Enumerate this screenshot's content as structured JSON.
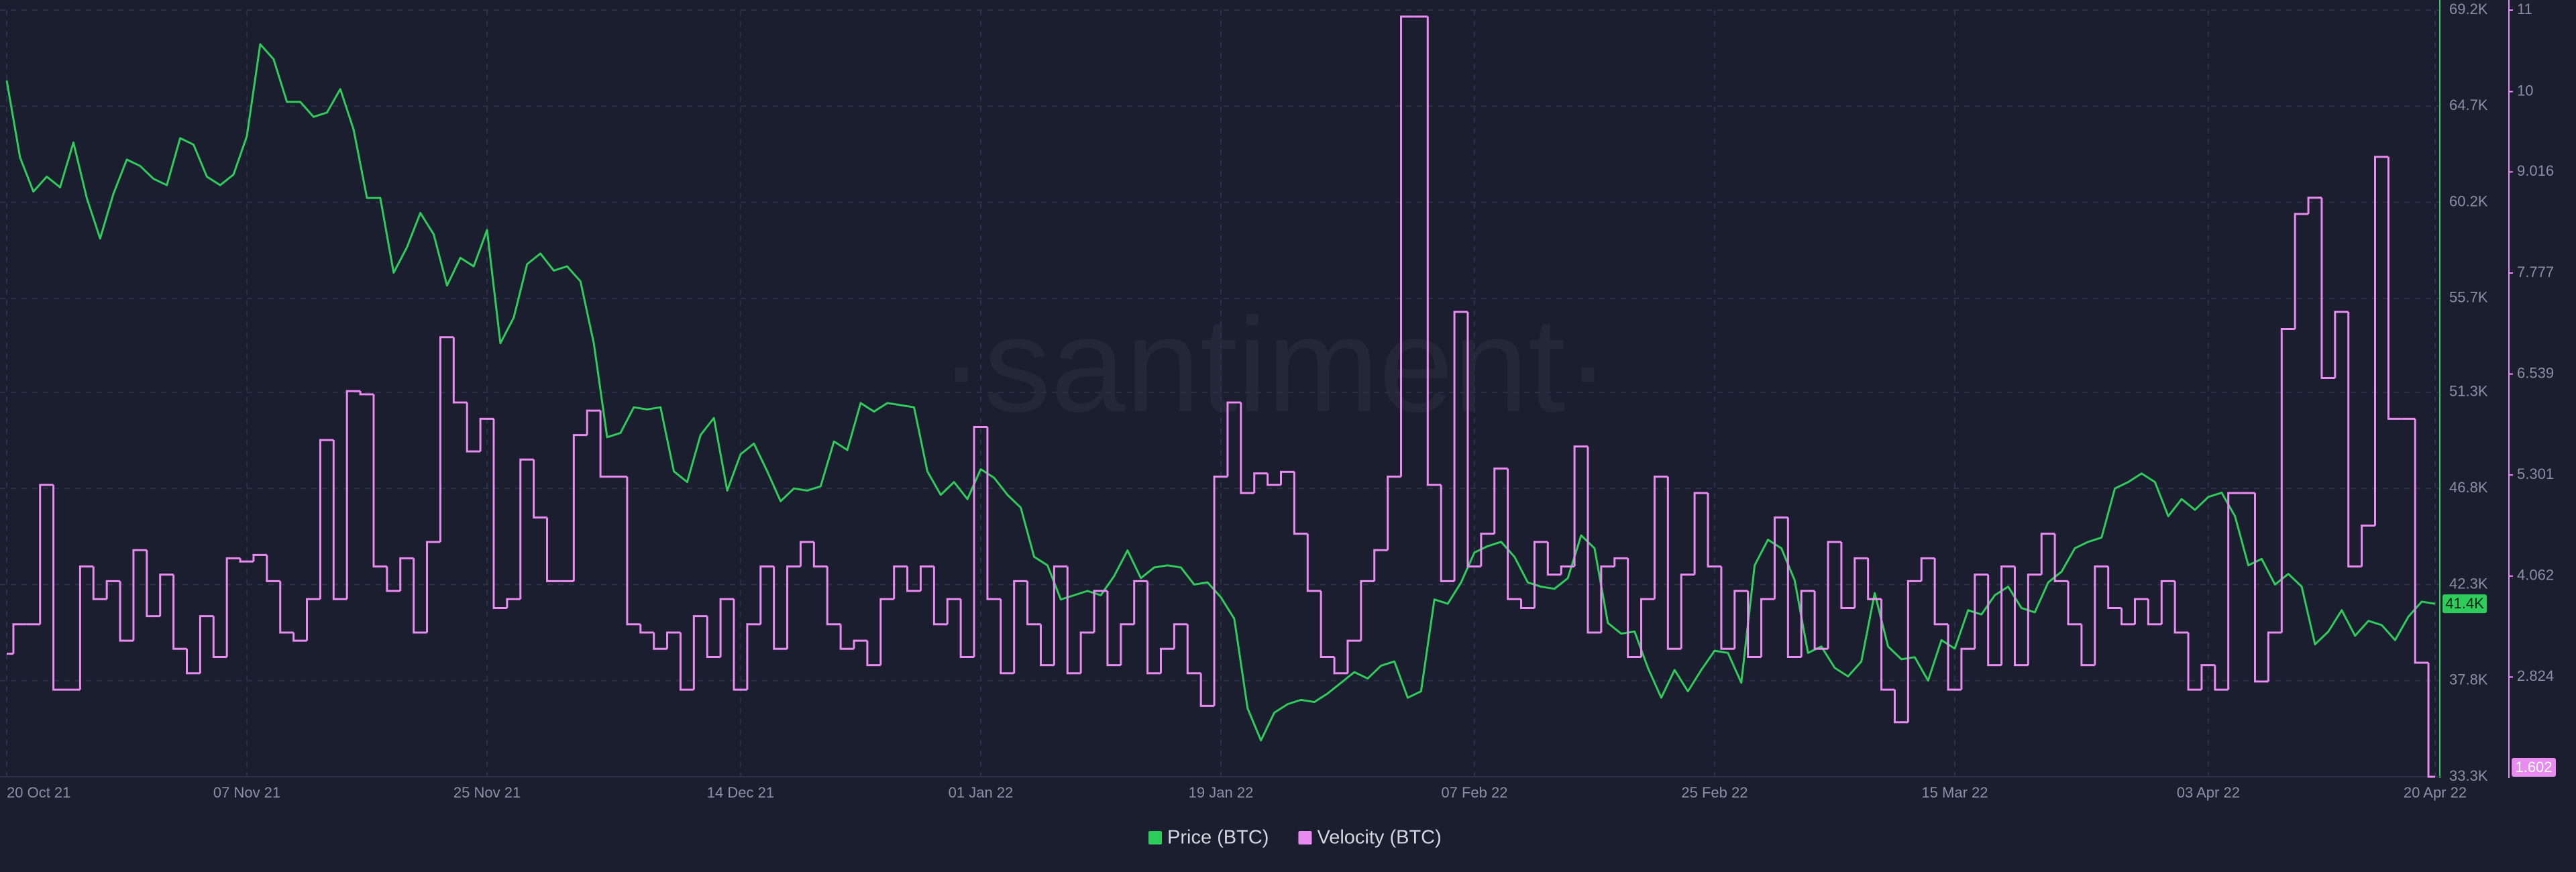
{
  "chart_data": {
    "type": "line",
    "watermark": "·santiment·",
    "categories": [
      "20 Oct 21",
      null,
      null,
      null,
      null,
      null,
      null,
      null,
      null,
      null,
      null,
      null,
      null,
      null,
      null,
      null,
      null,
      null,
      "07 Nov 21",
      null,
      null,
      null,
      null,
      null,
      null,
      null,
      null,
      null,
      null,
      null,
      null,
      null,
      null,
      null,
      null,
      null,
      "25 Nov 21",
      null,
      null,
      null,
      null,
      null,
      null,
      null,
      null,
      null,
      null,
      null,
      null,
      null,
      null,
      null,
      null,
      null,
      null,
      "14 Dec 21",
      null,
      null,
      null,
      null,
      null,
      null,
      null,
      null,
      null,
      null,
      null,
      null,
      null,
      null,
      null,
      null,
      null,
      "01 Jan 22",
      null,
      null,
      null,
      null,
      null,
      null,
      null,
      null,
      null,
      null,
      null,
      null,
      null,
      null,
      null,
      null,
      null,
      "19 Jan 22",
      null,
      null,
      null,
      null,
      null,
      null,
      null,
      null,
      null,
      null,
      null,
      null,
      null,
      null,
      null,
      null,
      null,
      null,
      "07 Feb 22",
      null,
      null,
      null,
      null,
      null,
      null,
      null,
      null,
      null,
      null,
      null,
      null,
      null,
      null,
      null,
      null,
      null,
      "25 Feb 22",
      null,
      null,
      null,
      null,
      null,
      null,
      null,
      null,
      null,
      null,
      null,
      null,
      null,
      null,
      null,
      null,
      null,
      "15 Mar 22",
      null,
      null,
      null,
      null,
      null,
      null,
      null,
      null,
      null,
      null,
      null,
      null,
      null,
      null,
      null,
      null,
      null,
      null,
      "03 Apr 22",
      null,
      null,
      null,
      null,
      null,
      null,
      null,
      null,
      null,
      null,
      null,
      null,
      null,
      null,
      null,
      null,
      "20 Apr 22"
    ],
    "series": [
      {
        "name": "Price (BTC)",
        "color": "#2ecc5a",
        "badge": {
          "value": 41400,
          "label": "41.4K"
        },
        "values": [
          65900,
          62300,
          60700,
          61400,
          60900,
          63000,
          60400,
          58500,
          60600,
          62200,
          61900,
          61300,
          61000,
          63200,
          62900,
          61400,
          61000,
          61500,
          63300,
          67600,
          66900,
          64900,
          64900,
          64200,
          64400,
          65500,
          63600,
          60400,
          60400,
          56900,
          58100,
          59700,
          58700,
          56300,
          57600,
          57200,
          58900,
          53600,
          54800,
          57300,
          57800,
          57000,
          57200,
          56500,
          53600,
          49200,
          49400,
          50600,
          50500,
          50600,
          47600,
          47100,
          49300,
          50100,
          46700,
          48400,
          48900,
          47600,
          46200,
          46800,
          46700,
          46900,
          49000,
          48600,
          50800,
          50400,
          50800,
          50700,
          50600,
          47600,
          46500,
          47100,
          46300,
          47700,
          47300,
          46500,
          45900,
          43600,
          43200,
          41600,
          41800,
          42000,
          41800,
          42700,
          43900,
          42600,
          43100,
          43200,
          43100,
          42300,
          42400,
          41700,
          40700,
          36500,
          35000,
          36300,
          36700,
          36900,
          36800,
          37200,
          37700,
          38200,
          37900,
          38500,
          38700,
          37000,
          37300,
          41600,
          41400,
          42400,
          43800,
          44100,
          44300,
          43600,
          42400,
          42200,
          42100,
          42600,
          44600,
          44000,
          40500,
          40000,
          40100,
          38400,
          37000,
          38300,
          37300,
          38300,
          39200,
          39100,
          37700,
          43200,
          44400,
          44000,
          42500,
          39100,
          39400,
          38400,
          38000,
          38700,
          41900,
          39400,
          38800,
          38900,
          37800,
          39700,
          39300,
          41100,
          40900,
          41800,
          42200,
          41200,
          41000,
          42400,
          42900,
          44000,
          44300,
          44500,
          46800,
          47100,
          47500,
          47100,
          45500,
          46300,
          45800,
          46400,
          46600,
          45500,
          43200,
          43500,
          42300,
          42800,
          42200,
          39500,
          40100,
          41100,
          39900,
          40600,
          40400,
          39700,
          40800,
          41500,
          41400
        ]
      },
      {
        "name": "Velocity (BTC)",
        "color": "#e98bf0",
        "axis": "y2",
        "step": true,
        "badge": {
          "value": 1.602,
          "label": "1.602"
        },
        "values": [
          3.11,
          3.47,
          3.47,
          5.18,
          2.67,
          2.67,
          4.18,
          3.78,
          4.0,
          3.27,
          4.38,
          3.57,
          4.08,
          3.17,
          2.87,
          3.57,
          3.07,
          4.28,
          4.24,
          4.32,
          4.0,
          3.37,
          3.27,
          3.78,
          5.73,
          3.78,
          6.33,
          6.29,
          4.18,
          3.88,
          4.28,
          3.37,
          4.48,
          6.99,
          6.19,
          5.59,
          5.99,
          3.67,
          3.78,
          5.49,
          4.78,
          4.0,
          4.0,
          5.79,
          6.09,
          5.28,
          5.28,
          3.47,
          3.37,
          3.17,
          3.37,
          2.67,
          3.57,
          3.07,
          3.78,
          2.67,
          3.47,
          4.18,
          3.17,
          4.18,
          4.48,
          4.18,
          3.47,
          3.17,
          3.27,
          2.97,
          3.78,
          4.18,
          3.88,
          4.18,
          3.47,
          3.78,
          3.07,
          5.89,
          3.78,
          2.87,
          4.0,
          3.47,
          2.97,
          4.18,
          2.87,
          3.37,
          3.88,
          2.97,
          3.47,
          4.0,
          2.87,
          3.17,
          3.47,
          2.87,
          2.47,
          5.28,
          6.19,
          5.08,
          5.32,
          5.18,
          5.34,
          4.58,
          3.88,
          3.07,
          2.87,
          3.27,
          4.0,
          4.38,
          5.28,
          10.92,
          10.92,
          5.18,
          4.0,
          7.3,
          4.18,
          4.58,
          5.38,
          3.78,
          3.67,
          4.48,
          4.08,
          4.18,
          5.65,
          3.37,
          4.18,
          4.28,
          3.07,
          3.78,
          5.28,
          3.17,
          4.08,
          5.08,
          4.18,
          3.17,
          3.88,
          3.07,
          3.78,
          4.78,
          3.07,
          3.88,
          3.17,
          4.48,
          3.67,
          4.28,
          3.78,
          2.67,
          2.27,
          4.0,
          4.28,
          3.47,
          2.67,
          3.17,
          4.08,
          2.97,
          4.18,
          2.97,
          4.08,
          4.58,
          4.0,
          3.47,
          2.97,
          4.18,
          3.67,
          3.47,
          3.78,
          3.47,
          4.0,
          3.37,
          2.67,
          2.97,
          2.67,
          5.08,
          5.08,
          2.77,
          3.37,
          7.09,
          8.5,
          8.7,
          6.49,
          7.3,
          4.18,
          4.68,
          9.2,
          5.99,
          5.99,
          3.0,
          1.602
        ]
      }
    ],
    "ylim": [
      33300,
      69200
    ],
    "yticks": [
      {
        "value": 33300,
        "label": "33.3K"
      },
      {
        "value": 37800,
        "label": "37.8K"
      },
      {
        "value": 42300,
        "label": "42.3K"
      },
      {
        "value": 46800,
        "label": "46.8K"
      },
      {
        "value": 51300,
        "label": "51.3K"
      },
      {
        "value": 55700,
        "label": "55.7K"
      },
      {
        "value": 60200,
        "label": "60.2K"
      },
      {
        "value": 64700,
        "label": "64.7K"
      },
      {
        "value": 69200,
        "label": "69.2K"
      }
    ],
    "y2lim": [
      1.602,
      11
    ],
    "y2ticks": [
      2.824,
      4.062,
      5.301,
      6.539,
      7.777,
      9.016,
      10,
      11
    ],
    "grid": true,
    "legend": "bottom"
  }
}
